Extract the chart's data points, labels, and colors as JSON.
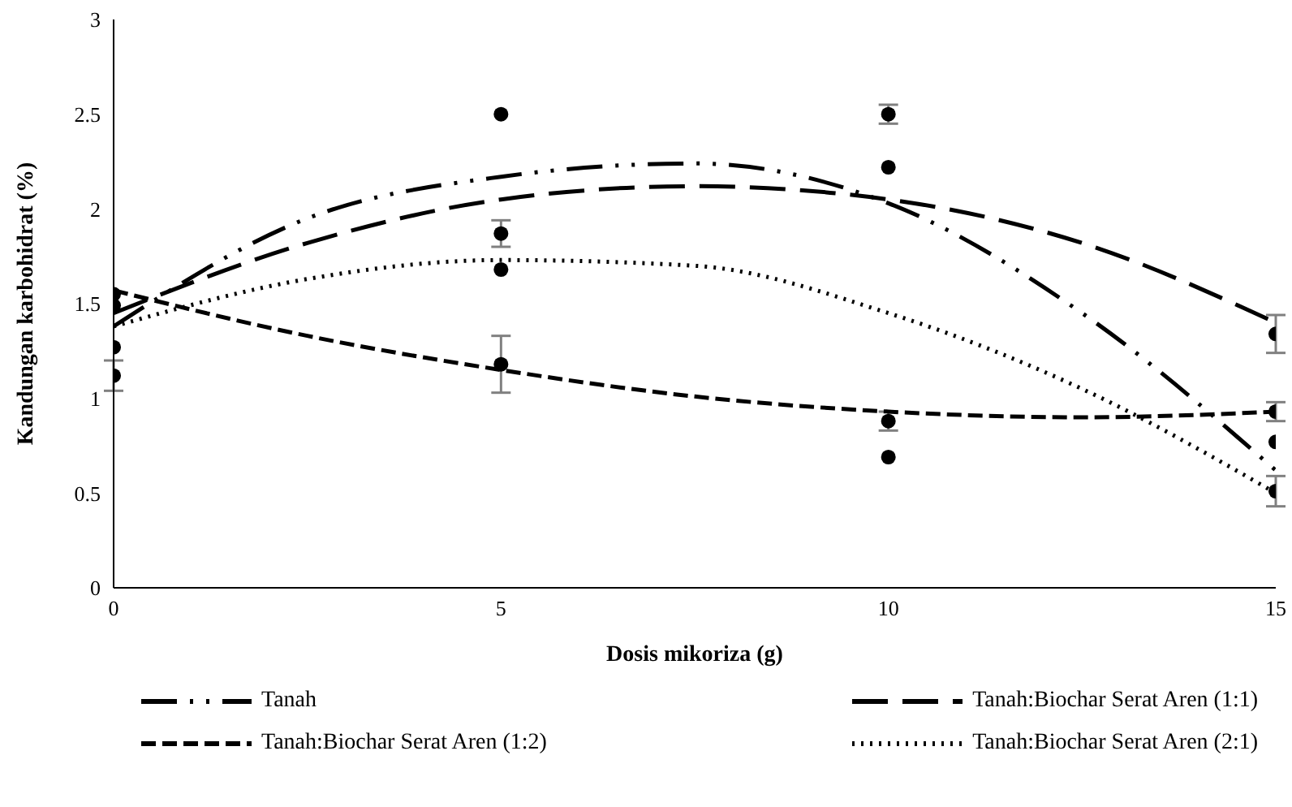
{
  "chart_data": {
    "type": "scatter",
    "xlabel": "Dosis mikoriza (g)",
    "ylabel": "Kandungan karbohidrat (%)",
    "xlim": [
      0,
      15
    ],
    "xticks": [
      0,
      5,
      10,
      15
    ],
    "ylim": [
      0,
      3
    ],
    "yticks": [
      0,
      0.5,
      1,
      1.5,
      2,
      2.5,
      3
    ],
    "grid": false,
    "legend": "bottom",
    "series": [
      {
        "marker": "circle",
        "color": "#000000",
        "x": [
          0,
          0,
          0,
          0,
          5,
          5,
          5,
          5,
          10,
          10,
          10,
          10,
          15,
          15,
          15,
          15
        ],
        "values": [
          1.55,
          1.49,
          1.27,
          1.12,
          2.5,
          1.87,
          1.68,
          1.18,
          2.5,
          2.22,
          0.88,
          0.69,
          1.34,
          0.93,
          0.77,
          0.51
        ],
        "errors": [
          null,
          null,
          null,
          0.08,
          null,
          0.07,
          null,
          0.15,
          0.05,
          null,
          0.05,
          null,
          0.1,
          0.05,
          null,
          0.08
        ]
      },
      {
        "type": "line",
        "name": "Tanah",
        "color": "#000000",
        "marker": "none",
        "line_style": "dashdotdot",
        "x": [
          0,
          2.5,
          5,
          7.5,
          10,
          12.5,
          15
        ],
        "values": [
          1.38,
          1.95,
          2.17,
          2.24,
          2.03,
          1.45,
          0.62
        ]
      },
      {
        "type": "line",
        "name": "Tanah:Biochar Serat Aren (1:1)",
        "color": "#000000",
        "marker": "none",
        "line_style": "longdash",
        "x": [
          0,
          2.5,
          5,
          7.5,
          10,
          12.5,
          15
        ],
        "values": [
          1.45,
          1.82,
          2.05,
          2.12,
          2.05,
          1.82,
          1.4
        ]
      },
      {
        "type": "line",
        "name": "Tanah:Biochar Serat Aren (1:2)",
        "color": "#000000",
        "marker": "none",
        "line_style": "dashed",
        "x": [
          0,
          2.5,
          5,
          7.5,
          10,
          12.5,
          15
        ],
        "values": [
          1.57,
          1.33,
          1.15,
          1.01,
          0.93,
          0.9,
          0.93
        ]
      },
      {
        "type": "line",
        "name": "Tanah:Biochar Serat Aren (2:1)",
        "color": "#000000",
        "marker": "none",
        "line_style": "dotted",
        "x": [
          0,
          2.5,
          5,
          7.5,
          10,
          12.5,
          15
        ],
        "values": [
          1.38,
          1.63,
          1.73,
          1.7,
          1.45,
          1.05,
          0.5
        ]
      }
    ]
  }
}
